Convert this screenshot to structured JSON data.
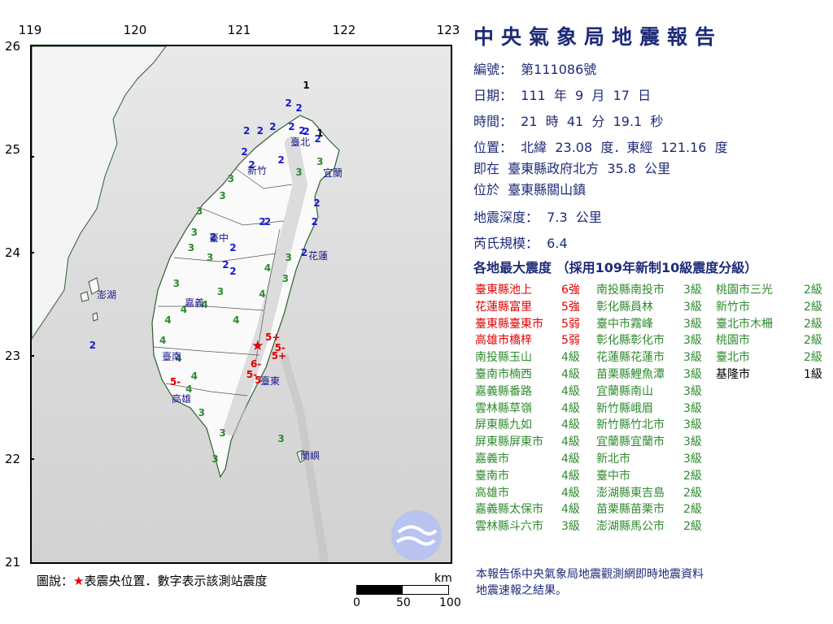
{
  "title": "中央氣象局地震報告",
  "info": {
    "number": "編號：  第111086號",
    "date": "日期：  111  年  9  月  17  日",
    "time": "時間：  21  時  41  分  19.1  秒",
    "position": "位置：  北緯  23.08  度．東經  121.16  度",
    "relative": "即在  臺東縣政府北方  35.8  公里",
    "located": "位於  臺東縣關山鎮",
    "depth": "地震深度：  7.3  公里",
    "magnitude": "芮氏規模：  6.4",
    "intensity_header": "各地最大震度 （採用109年新制10級震度分級）"
  },
  "colors": {
    "level_6plus": "#e00000",
    "level_5": "#e00000",
    "level_4": "#2e8b2e",
    "level_3": "#2e8b2e",
    "level_2": "#1a1acd",
    "level_1": "#000000",
    "text_blue": "#1e2b78",
    "epicenter": "#e00000"
  },
  "intensity_columns": [
    [
      {
        "station": "臺東縣池上",
        "level": "6強",
        "color": "#e00000"
      },
      {
        "station": "花蓮縣富里",
        "level": "5強",
        "color": "#e00000"
      },
      {
        "station": "臺東縣臺東市",
        "level": "5弱",
        "color": "#e00000"
      },
      {
        "station": "高雄市橋梓",
        "level": "5弱",
        "color": "#e00000"
      },
      {
        "station": "南投縣玉山",
        "level": "4級",
        "color": "#2e8b2e"
      },
      {
        "station": "臺南市楠西",
        "level": "4級",
        "color": "#2e8b2e"
      },
      {
        "station": "嘉義縣番路",
        "level": "4級",
        "color": "#2e8b2e"
      },
      {
        "station": "雲林縣草嶺",
        "level": "4級",
        "color": "#2e8b2e"
      },
      {
        "station": "屏東縣九如",
        "level": "4級",
        "color": "#2e8b2e"
      },
      {
        "station": "屏東縣屏東市",
        "level": "4級",
        "color": "#2e8b2e"
      },
      {
        "station": "嘉義市",
        "level": "4級",
        "color": "#2e8b2e"
      },
      {
        "station": "臺南市",
        "level": "4級",
        "color": "#2e8b2e"
      },
      {
        "station": "高雄市",
        "level": "4級",
        "color": "#2e8b2e"
      },
      {
        "station": "嘉義縣太保市",
        "level": "4級",
        "color": "#2e8b2e"
      },
      {
        "station": "雲林縣斗六市",
        "level": "3級",
        "color": "#2e8b2e"
      }
    ],
    [
      {
        "station": "南投縣南投市",
        "level": "3級",
        "color": "#2e8b2e"
      },
      {
        "station": "彰化縣員林",
        "level": "3級",
        "color": "#2e8b2e"
      },
      {
        "station": "臺中市霧峰",
        "level": "3級",
        "color": "#2e8b2e"
      },
      {
        "station": "彰化縣彰化市",
        "level": "3級",
        "color": "#2e8b2e"
      },
      {
        "station": "花蓮縣花蓮市",
        "level": "3級",
        "color": "#2e8b2e"
      },
      {
        "station": "苗栗縣鯉魚潭",
        "level": "3級",
        "color": "#2e8b2e"
      },
      {
        "station": "宜蘭縣南山",
        "level": "3級",
        "color": "#2e8b2e"
      },
      {
        "station": "新竹縣峨眉",
        "level": "3級",
        "color": "#2e8b2e"
      },
      {
        "station": "新竹縣竹北市",
        "level": "3級",
        "color": "#2e8b2e"
      },
      {
        "station": "宜蘭縣宜蘭市",
        "level": "3級",
        "color": "#2e8b2e"
      },
      {
        "station": "新北市",
        "level": "3級",
        "color": "#2e8b2e"
      },
      {
        "station": "臺中市",
        "level": "2級",
        "color": "#2e8b2e"
      },
      {
        "station": "澎湖縣東吉島",
        "level": "2級",
        "color": "#2e8b2e"
      },
      {
        "station": "苗栗縣苗栗市",
        "level": "2級",
        "color": "#2e8b2e"
      },
      {
        "station": "澎湖縣馬公市",
        "level": "2級",
        "color": "#2e8b2e"
      }
    ],
    [
      {
        "station": "桃園市三光",
        "level": "2級",
        "color": "#2e8b2e"
      },
      {
        "station": "新竹市",
        "level": "2級",
        "color": "#2e8b2e"
      },
      {
        "station": "臺北市木柵",
        "level": "2級",
        "color": "#2e8b2e"
      },
      {
        "station": "桃園市",
        "level": "2級",
        "color": "#2e8b2e"
      },
      {
        "station": "臺北市",
        "level": "2級",
        "color": "#2e8b2e"
      },
      {
        "station": "基隆市",
        "level": "1級",
        "color": "#000000"
      }
    ]
  ],
  "map": {
    "lon_labels": [
      "119",
      "120",
      "121",
      "122",
      "123"
    ],
    "lat_labels": [
      "26",
      "25",
      "24",
      "23",
      "22",
      "21"
    ],
    "cities": [
      "臺北",
      "新竹",
      "宜蘭",
      "臺中",
      "花蓮",
      "澎湖",
      "嘉義",
      "臺南",
      "臺東",
      "高雄",
      "蘭嶼"
    ],
    "stations": [
      {
        "v": "1",
        "lon": 121.62,
        "lat": 25.62,
        "c": "#000000"
      },
      {
        "v": "1",
        "lon": 121.75,
        "lat": 25.16,
        "c": "#000000"
      },
      {
        "v": "2",
        "lon": 121.45,
        "lat": 25.45,
        "c": "#1a1acd"
      },
      {
        "v": "2",
        "lon": 121.55,
        "lat": 25.4,
        "c": "#1a1acd"
      },
      {
        "v": "2",
        "lon": 121.48,
        "lat": 25.22,
        "c": "#1a1acd"
      },
      {
        "v": "2",
        "lon": 121.58,
        "lat": 25.18,
        "c": "#1a1acd"
      },
      {
        "v": "2",
        "lon": 121.62,
        "lat": 25.17,
        "c": "#1a1acd"
      },
      {
        "v": "2",
        "lon": 121.3,
        "lat": 25.22,
        "c": "#1a1acd"
      },
      {
        "v": "2",
        "lon": 121.18,
        "lat": 25.18,
        "c": "#1a1acd"
      },
      {
        "v": "2",
        "lon": 121.05,
        "lat": 25.18,
        "c": "#1a1acd"
      },
      {
        "v": "2",
        "lon": 121.03,
        "lat": 24.98,
        "c": "#1a1acd"
      },
      {
        "v": "2",
        "lon": 121.1,
        "lat": 24.85,
        "c": "#1a1acd"
      },
      {
        "v": "2",
        "lon": 121.38,
        "lat": 24.9,
        "c": "#1a1acd"
      },
      {
        "v": "2",
        "lon": 121.73,
        "lat": 25.1,
        "c": "#1a1acd"
      },
      {
        "v": "2",
        "lon": 121.72,
        "lat": 24.48,
        "c": "#1a1acd"
      },
      {
        "v": "2",
        "lon": 121.7,
        "lat": 24.3,
        "c": "#1a1acd"
      },
      {
        "v": "2",
        "lon": 121.6,
        "lat": 24.0,
        "c": "#1a1acd"
      },
      {
        "v": "2",
        "lon": 121.2,
        "lat": 24.3,
        "c": "#1a1acd"
      },
      {
        "v": "2",
        "lon": 121.25,
        "lat": 24.3,
        "c": "#1a1acd"
      },
      {
        "v": "2",
        "lon": 120.73,
        "lat": 24.15,
        "c": "#1a1acd"
      },
      {
        "v": "2",
        "lon": 120.92,
        "lat": 24.05,
        "c": "#1a1acd"
      },
      {
        "v": "2",
        "lon": 120.85,
        "lat": 23.88,
        "c": "#1a1acd"
      },
      {
        "v": "2",
        "lon": 120.92,
        "lat": 23.82,
        "c": "#1a1acd"
      },
      {
        "v": "2",
        "lon": 119.58,
        "lat": 23.1,
        "c": "#1a1acd"
      },
      {
        "v": "3",
        "lon": 121.75,
        "lat": 24.88,
        "c": "#2e8b2e"
      },
      {
        "v": "3",
        "lon": 121.55,
        "lat": 24.78,
        "c": "#2e8b2e"
      },
      {
        "v": "3",
        "lon": 120.9,
        "lat": 24.72,
        "c": "#2e8b2e"
      },
      {
        "v": "3",
        "lon": 120.82,
        "lat": 24.55,
        "c": "#2e8b2e"
      },
      {
        "v": "3",
        "lon": 120.6,
        "lat": 24.4,
        "c": "#2e8b2e"
      },
      {
        "v": "3",
        "lon": 120.55,
        "lat": 24.2,
        "c": "#2e8b2e"
      },
      {
        "v": "3",
        "lon": 120.52,
        "lat": 24.05,
        "c": "#2e8b2e"
      },
      {
        "v": "3",
        "lon": 120.7,
        "lat": 23.95,
        "c": "#2e8b2e"
      },
      {
        "v": "3",
        "lon": 121.45,
        "lat": 23.95,
        "c": "#2e8b2e"
      },
      {
        "v": "3",
        "lon": 121.42,
        "lat": 23.75,
        "c": "#2e8b2e"
      },
      {
        "v": "3",
        "lon": 120.38,
        "lat": 23.7,
        "c": "#2e8b2e"
      },
      {
        "v": "3",
        "lon": 120.8,
        "lat": 23.62,
        "c": "#2e8b2e"
      },
      {
        "v": "4",
        "lon": 120.95,
        "lat": 23.35,
        "c": "#2e8b2e"
      },
      {
        "v": "4",
        "lon": 120.65,
        "lat": 23.5,
        "c": "#2e8b2e"
      },
      {
        "v": "4",
        "lon": 120.45,
        "lat": 23.45,
        "c": "#2e8b2e"
      },
      {
        "v": "4",
        "lon": 120.3,
        "lat": 23.35,
        "c": "#2e8b2e"
      },
      {
        "v": "4",
        "lon": 120.25,
        "lat": 23.15,
        "c": "#2e8b2e"
      },
      {
        "v": "4",
        "lon": 120.4,
        "lat": 22.98,
        "c": "#2e8b2e"
      },
      {
        "v": "4",
        "lon": 120.55,
        "lat": 22.8,
        "c": "#2e8b2e"
      },
      {
        "v": "4",
        "lon": 120.5,
        "lat": 22.68,
        "c": "#2e8b2e"
      },
      {
        "v": "4",
        "lon": 121.25,
        "lat": 23.85,
        "c": "#2e8b2e"
      },
      {
        "v": "4",
        "lon": 121.2,
        "lat": 23.6,
        "c": "#2e8b2e"
      },
      {
        "v": "3",
        "lon": 120.62,
        "lat": 22.45,
        "c": "#2e8b2e"
      },
      {
        "v": "3",
        "lon": 120.82,
        "lat": 22.25,
        "c": "#2e8b2e"
      },
      {
        "v": "3",
        "lon": 120.75,
        "lat": 22.0,
        "c": "#2e8b2e"
      },
      {
        "v": "3",
        "lon": 121.38,
        "lat": 22.2,
        "c": "#2e8b2e"
      },
      {
        "v": "6-",
        "lon": 121.12,
        "lat": 22.92,
        "c": "#e00000"
      },
      {
        "v": "5+",
        "lon": 121.26,
        "lat": 23.18,
        "c": "#e00000"
      },
      {
        "v": "5-",
        "lon": 121.35,
        "lat": 23.08,
        "c": "#e00000"
      },
      {
        "v": "5+",
        "lon": 121.32,
        "lat": 23.0,
        "c": "#e00000"
      },
      {
        "v": "5-",
        "lon": 121.08,
        "lat": 22.82,
        "c": "#e00000"
      },
      {
        "v": "5",
        "lon": 121.16,
        "lat": 22.76,
        "c": "#e00000"
      },
      {
        "v": "5-",
        "lon": 120.35,
        "lat": 22.75,
        "c": "#e00000"
      }
    ],
    "epicenter": {
      "lon": 121.16,
      "lat": 23.08
    },
    "legend": "圖說：★表震央位置．數字表示該測站震度",
    "legend_star": "★",
    "scale_unit": "km",
    "scale_ticks": [
      "0",
      "50",
      "100"
    ]
  },
  "footer": {
    "line1": "本報告係中央氣象局地震觀測網即時地震資料",
    "line2": "地震速報之結果。"
  }
}
